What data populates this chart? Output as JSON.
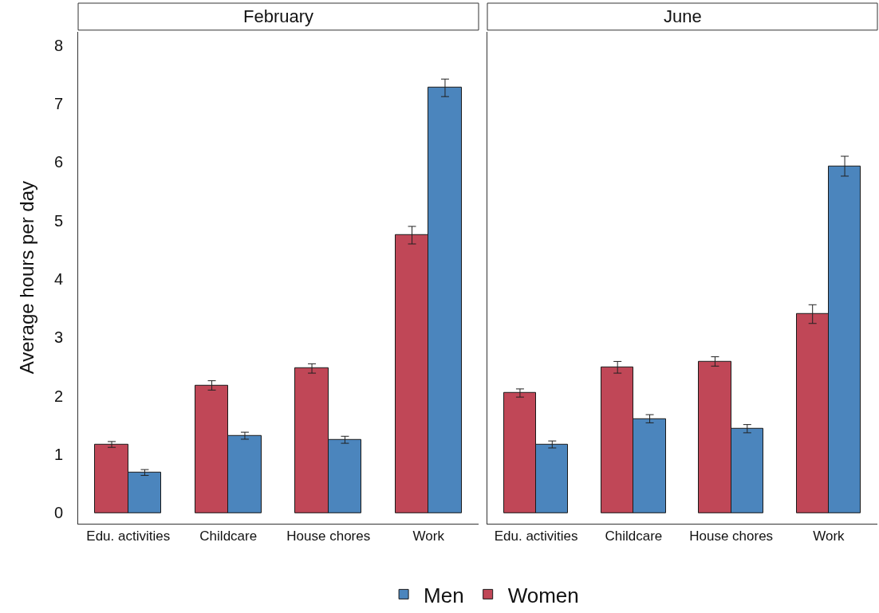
{
  "chart_data": [
    {
      "type": "bar",
      "title": "February",
      "ylabel": "Average hours per day",
      "categories": [
        "Edu. activities",
        "Childcare",
        "House chores",
        "Work"
      ],
      "series": [
        {
          "name": "Women",
          "color": "#c04757",
          "values": [
            1.17,
            2.18,
            2.47,
            4.75
          ],
          "errors": [
            0.05,
            0.08,
            0.08,
            0.15
          ]
        },
        {
          "name": "Men",
          "color": "#4b85bd",
          "values": [
            0.69,
            1.32,
            1.25,
            7.27
          ],
          "errors": [
            0.05,
            0.06,
            0.06,
            0.15
          ]
        }
      ],
      "ylim": [
        -0.18,
        8.23
      ],
      "yticks": [
        0,
        1,
        2,
        3,
        4,
        5,
        6,
        7,
        8
      ],
      "grid": false,
      "legend": "bottom"
    },
    {
      "type": "bar",
      "title": "June",
      "categories": [
        "Edu. activities",
        "Childcare",
        "House chores",
        "Work"
      ],
      "series": [
        {
          "color": "#c04757",
          "values": [
            2.05,
            2.49,
            2.59,
            3.4
          ],
          "errors": [
            0.07,
            0.1,
            0.08,
            0.16
          ]
        },
        {
          "color": "#4b85bd",
          "values": [
            1.17,
            1.61,
            1.44,
            5.93
          ],
          "errors": [
            0.06,
            0.07,
            0.07,
            0.17
          ]
        }
      ],
      "ylim": [
        -0.18,
        8.23
      ],
      "yticks": [
        0,
        1,
        2,
        3,
        4,
        5,
        6,
        7,
        8
      ],
      "grid": false,
      "tick_labels": "x"
    }
  ]
}
